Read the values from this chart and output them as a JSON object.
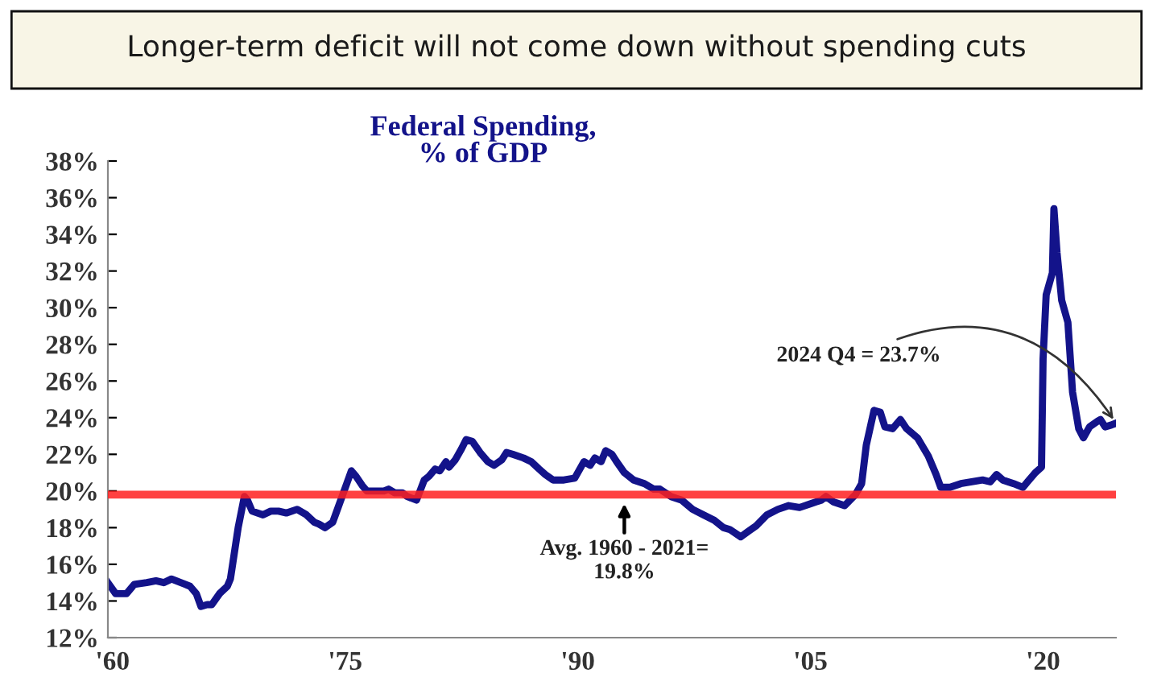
{
  "chart_data": {
    "type": "line",
    "title": "Longer-term deficit will not come down without spending cuts",
    "subtitle": "Federal Spending,\n% of GDP",
    "series": [
      {
        "color": "#13138a",
        "x": [
          1959.7,
          1960.2,
          1960.9,
          1961.4,
          1962.2,
          1962.8,
          1963.3,
          1963.8,
          1964.7,
          1965.0,
          1965.4,
          1965.7,
          1966.1,
          1966.4,
          1966.9,
          1967.4,
          1967.6,
          1968.1,
          1968.5,
          1968.7,
          1969.0,
          1969.7,
          1970.2,
          1970.7,
          1971.2,
          1971.9,
          1972.5,
          1973.0,
          1973.3,
          1973.7,
          1974.2,
          1974.5,
          1975.1,
          1975.4,
          1975.7,
          1976.1,
          1976.4,
          1977.0,
          1977.5,
          1977.8,
          1978.2,
          1978.7,
          1979.0,
          1979.6,
          1980.1,
          1980.4,
          1980.8,
          1981.1,
          1981.5,
          1981.7,
          1982.1,
          1982.5,
          1982.8,
          1983.2,
          1983.7,
          1984.2,
          1984.6,
          1985.1,
          1985.4,
          1985.8,
          1986.5,
          1987.0,
          1987.5,
          1987.9,
          1988.4,
          1989.1,
          1989.8,
          1990.4,
          1990.8,
          1991.1,
          1991.5,
          1991.8,
          1992.2,
          1992.5,
          1993.0,
          1993.6,
          1994.3,
          1994.9,
          1995.3,
          1996.0,
          1996.7,
          1997.4,
          1998.1,
          1998.8,
          1999.4,
          1999.8,
          2000.5,
          2001.0,
          2001.5,
          2002.2,
          2002.9,
          2003.6,
          2004.3,
          2005.0,
          2005.7,
          2006.0,
          2006.5,
          2007.2,
          2007.9,
          2008.3,
          2008.6,
          2009.1,
          2009.5,
          2009.8,
          2010.3,
          2010.8,
          2011.2,
          2011.9,
          2012.6,
          2013.1,
          2013.4,
          2014.0,
          2014.7,
          2015.4,
          2016.1,
          2016.6,
          2017.0,
          2017.4,
          2018.1,
          2018.7,
          2019.0,
          2019.5,
          2019.9,
          2020.0,
          2020.2,
          2020.6,
          2020.7,
          2020.9,
          2021.2,
          2021.6,
          2021.9,
          2022.3,
          2022.6,
          2023.0,
          2023.5,
          2023.7,
          2024.0,
          2024.4,
          2024.7
        ],
        "values": [
          15.0,
          14.4,
          14.4,
          14.9,
          15.0,
          15.1,
          15.0,
          15.2,
          14.9,
          14.8,
          14.4,
          13.7,
          13.8,
          13.8,
          14.4,
          14.8,
          15.2,
          18.0,
          19.7,
          19.5,
          18.9,
          18.7,
          18.9,
          18.9,
          18.8,
          19.0,
          18.7,
          18.3,
          18.2,
          18.0,
          18.3,
          19.0,
          20.4,
          21.1,
          20.8,
          20.3,
          20.0,
          20.0,
          20.0,
          20.1,
          19.9,
          19.9,
          19.7,
          19.5,
          20.6,
          20.8,
          21.2,
          21.1,
          21.6,
          21.3,
          21.7,
          22.3,
          22.8,
          22.7,
          22.1,
          21.6,
          21.4,
          21.7,
          22.1,
          22.0,
          21.8,
          21.6,
          21.2,
          20.9,
          20.6,
          20.6,
          20.7,
          21.6,
          21.4,
          21.8,
          21.6,
          22.2,
          22.0,
          21.6,
          21.0,
          20.6,
          20.4,
          20.1,
          20.1,
          19.7,
          19.5,
          19.0,
          18.7,
          18.4,
          18.0,
          17.9,
          17.5,
          17.8,
          18.1,
          18.7,
          19.0,
          19.2,
          19.1,
          19.3,
          19.5,
          19.7,
          19.4,
          19.2,
          19.8,
          20.4,
          22.5,
          24.4,
          24.3,
          23.5,
          23.4,
          23.9,
          23.4,
          22.9,
          21.9,
          20.9,
          20.2,
          20.2,
          20.4,
          20.5,
          20.6,
          20.5,
          20.9,
          20.6,
          20.4,
          20.2,
          20.5,
          21.0,
          21.3,
          27.2,
          30.7,
          31.9,
          35.4,
          33.0,
          30.4,
          29.2,
          25.4,
          23.4,
          22.9,
          23.5,
          23.8,
          23.9,
          23.5,
          23.6,
          23.7
        ]
      }
    ],
    "xlim": [
      1959.7,
      2024.7
    ],
    "xticks": [
      {
        "value": 1960,
        "label": "'60"
      },
      {
        "value": 1975,
        "label": "'75"
      },
      {
        "value": 1990,
        "label": "'90"
      },
      {
        "value": 2005,
        "label": "'05"
      },
      {
        "value": 2020,
        "label": "'20"
      }
    ],
    "ylim": [
      12,
      38
    ],
    "yticks": [
      {
        "value": 12,
        "label": "12%"
      },
      {
        "value": 14,
        "label": "14%"
      },
      {
        "value": 16,
        "label": "16%"
      },
      {
        "value": 18,
        "label": "18%"
      },
      {
        "value": 20,
        "label": "20%"
      },
      {
        "value": 22,
        "label": "22%"
      },
      {
        "value": 24,
        "label": "24%"
      },
      {
        "value": 26,
        "label": "26%"
      },
      {
        "value": 28,
        "label": "28%"
      },
      {
        "value": 30,
        "label": "30%"
      },
      {
        "value": 32,
        "label": "32%"
      },
      {
        "value": 34,
        "label": "34%"
      },
      {
        "value": 36,
        "label": "36%"
      },
      {
        "value": 38,
        "label": "38%"
      }
    ],
    "ref_lines": [
      {
        "axis": "y",
        "value": 19.8,
        "color": "#ff2020",
        "line_style": "solid"
      }
    ],
    "annotations": [
      {
        "text": "Avg. 1960 - 2021=\n19.8%",
        "x": 1993.0,
        "y": 19.8
      },
      {
        "text": "2024 Q4 = 23.7%",
        "x": 2024.7,
        "y": 23.7
      }
    ],
    "grid": false,
    "legend": false,
    "marker": "none",
    "line_style": "solid"
  }
}
